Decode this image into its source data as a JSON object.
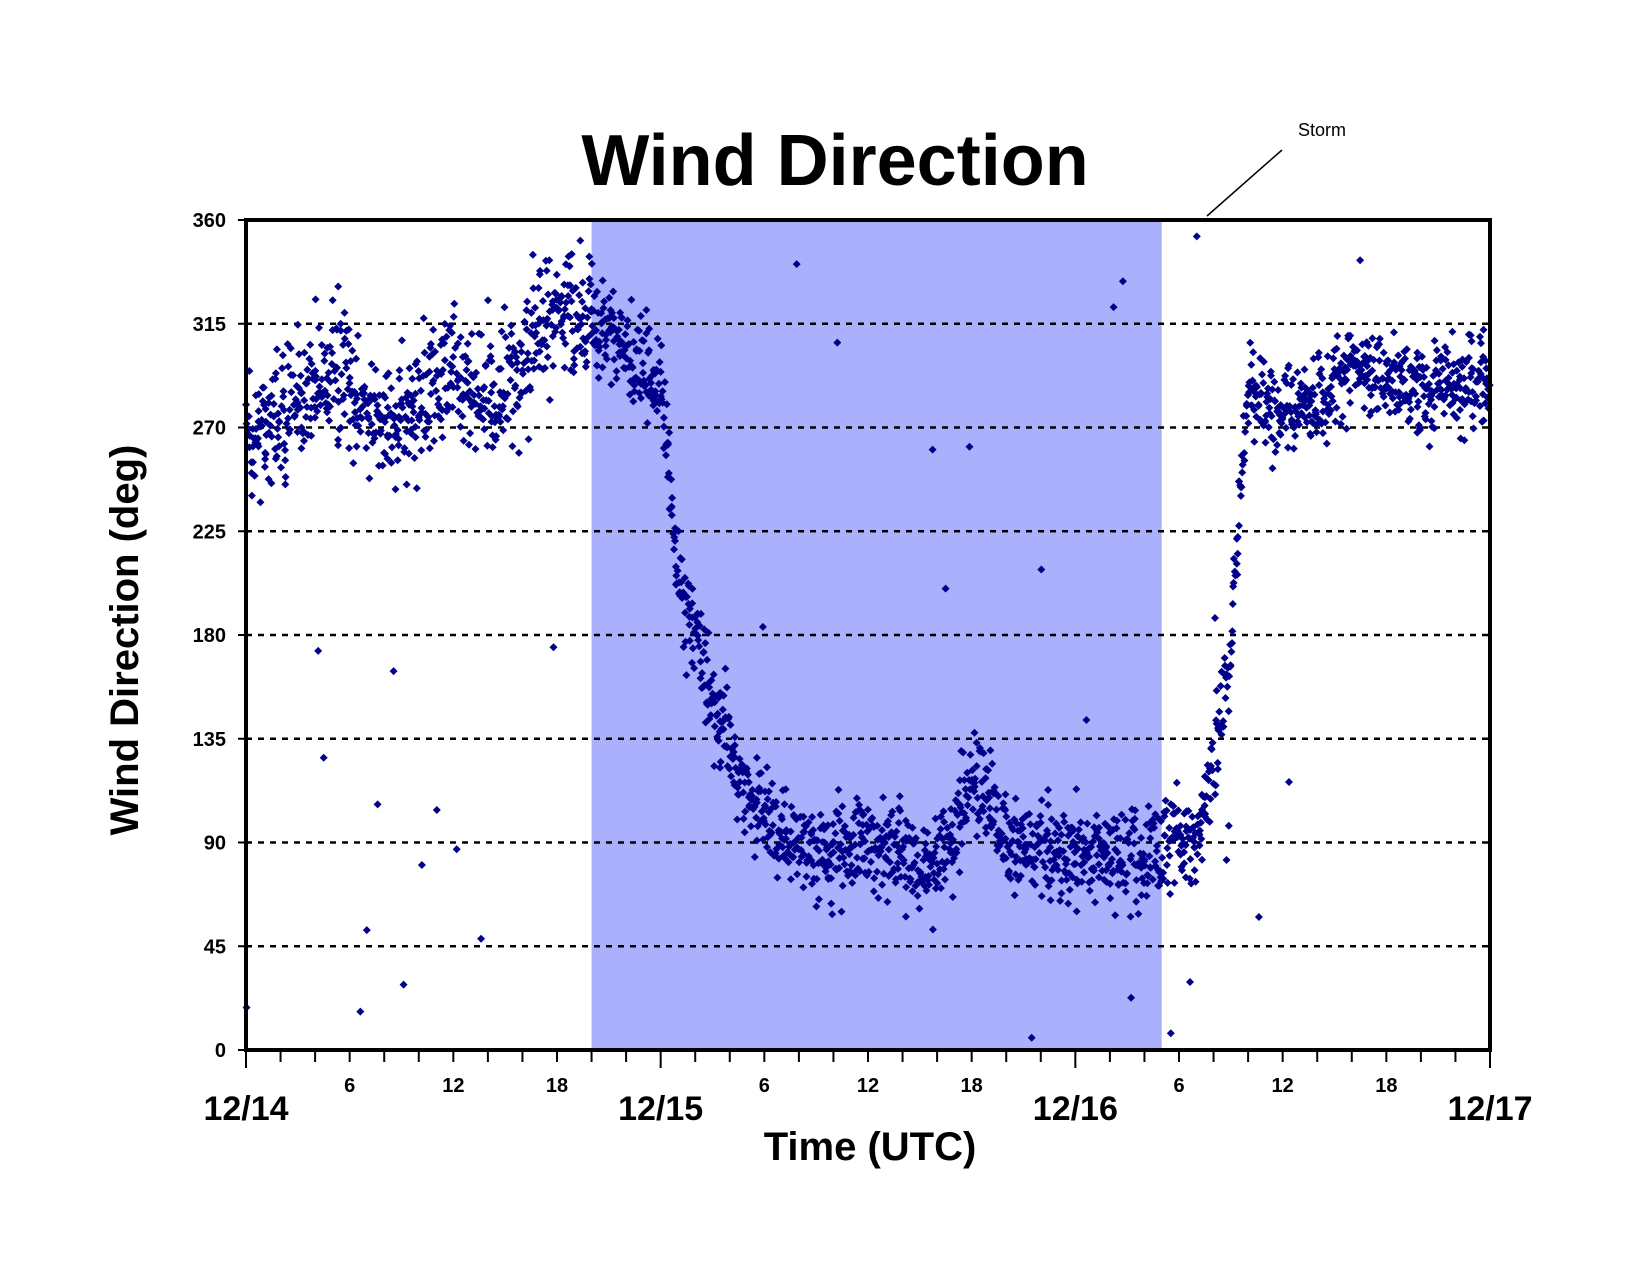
{
  "chart_data": {
    "type": "scatter",
    "title": "Wind Direction",
    "xlabel": "Time (UTC)",
    "ylabel": "Wind Direction (deg)",
    "ylim": [
      0,
      360
    ],
    "xlim": [
      "12/14 00",
      "12/17 00"
    ],
    "y_ticks": [
      0,
      45,
      90,
      135,
      180,
      225,
      270,
      315,
      360
    ],
    "x_hour_ticks": [
      "6",
      "12",
      "18",
      "6",
      "12",
      "18",
      "6",
      "12",
      "18"
    ],
    "x_day_labels": [
      "12/14",
      "12/15",
      "12/16",
      "12/17"
    ],
    "grid": "horizontal dashed lines at each y tick",
    "storm_period": {
      "label": "Storm",
      "start": "12/14 20",
      "end": "12/16 05",
      "color": "#aab0fc"
    },
    "marker_color": "#00008b",
    "marker": "diamond",
    "series_trend": [
      {
        "x": "12/14 00",
        "y": 265
      },
      {
        "x": "12/14 03",
        "y": 280
      },
      {
        "x": "12/14 05",
        "y": 295
      },
      {
        "x": "12/14 07",
        "y": 275
      },
      {
        "x": "12/14 09",
        "y": 270
      },
      {
        "x": "12/14 12",
        "y": 295
      },
      {
        "x": "12/14 14",
        "y": 280
      },
      {
        "x": "12/14 16",
        "y": 295
      },
      {
        "x": "12/14 17",
        "y": 315
      },
      {
        "x": "12/14 20",
        "y": 318
      },
      {
        "x": "12/14 22",
        "y": 305
      },
      {
        "x": "12/15 00",
        "y": 290
      },
      {
        "x": "12/15 01",
        "y": 205
      },
      {
        "x": "12/15 02",
        "y": 180
      },
      {
        "x": "12/15 03",
        "y": 150
      },
      {
        "x": "12/15 05",
        "y": 110
      },
      {
        "x": "12/15 07",
        "y": 95
      },
      {
        "x": "12/15 09",
        "y": 85
      },
      {
        "x": "12/15 12",
        "y": 90
      },
      {
        "x": "12/15 14",
        "y": 85
      },
      {
        "x": "12/15 15",
        "y": 75
      },
      {
        "x": "12/15 17",
        "y": 95
      },
      {
        "x": "12/15 18",
        "y": 120
      },
      {
        "x": "12/15 20",
        "y": 90
      },
      {
        "x": "12/15 22",
        "y": 85
      },
      {
        "x": "12/16 01",
        "y": 85
      },
      {
        "x": "12/16 04",
        "y": 85
      },
      {
        "x": "12/16 05",
        "y": 90
      },
      {
        "x": "12/16 07",
        "y": 90
      },
      {
        "x": "12/16 08",
        "y": 130
      },
      {
        "x": "12/16 09",
        "y": 170
      },
      {
        "x": "12/16 09.5",
        "y": 230
      },
      {
        "x": "12/16 10",
        "y": 285
      },
      {
        "x": "12/16 12",
        "y": 275
      },
      {
        "x": "12/16 14",
        "y": 280
      },
      {
        "x": "12/16 16",
        "y": 300
      },
      {
        "x": "12/16 18",
        "y": 290
      },
      {
        "x": "12/16 21",
        "y": 285
      },
      {
        "x": "12/17 00",
        "y": 290
      }
    ]
  }
}
